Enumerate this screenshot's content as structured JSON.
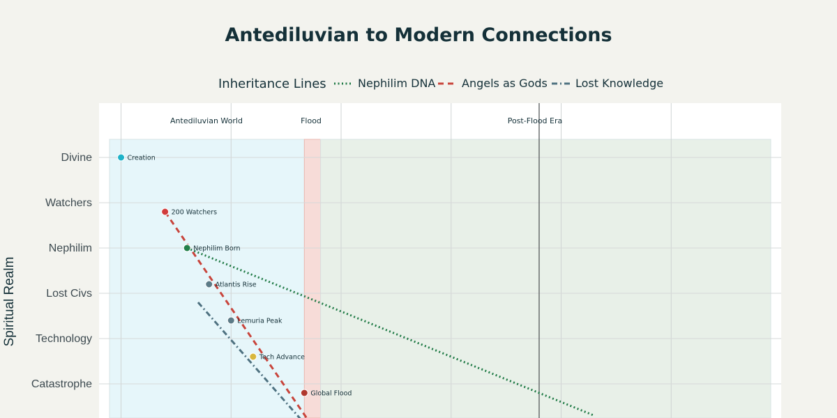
{
  "chart_data": {
    "type": "scatter",
    "title": "Antediluvian to Modern Connections",
    "ylabel": "Spiritual Realm",
    "xlabel": "",
    "grid": true,
    "categories": [
      "Divine",
      "Watchers",
      "Nephilim",
      "Lost Civs",
      "Technology",
      "Catastrophe"
    ],
    "x_range": [
      0,
      31
    ],
    "y_range_cat": [
      -0.9,
      6.7
    ],
    "legend": {
      "title": "Inheritance Lines",
      "placement": "top",
      "entries": [
        {
          "name": "Nephilim DNA",
          "color": "#1f7a45",
          "dash": "dot"
        },
        {
          "name": "Angels as Gods",
          "color": "#c8443b",
          "dash": "dash"
        },
        {
          "name": "Lost Knowledge",
          "color": "#4e7180",
          "dash": "dashdot"
        }
      ]
    },
    "eras": [
      {
        "name": "Antediluvian World",
        "x0": 0,
        "x1": 9.33,
        "color": "#e6f6fa"
      },
      {
        "name": "Flood",
        "x0": 9.33,
        "x1": 10.07,
        "color": "#f7dcd8"
      },
      {
        "name": "Post-Flood Era",
        "x0": 10.07,
        "x1": 31,
        "color": "#e8f0e8"
      }
    ],
    "points": [
      {
        "label": "Creation",
        "x": 1,
        "y": 0,
        "color": "#1fb3c9"
      },
      {
        "label": "200 Watchers",
        "x": 3,
        "y": 1.2,
        "color": "#d13c3c"
      },
      {
        "label": "Nephilim Born",
        "x": 4,
        "y": 2,
        "color": "#23804a"
      },
      {
        "label": "Atlantis Rise",
        "x": 5,
        "y": 2.8,
        "color": "#5c7b87"
      },
      {
        "label": "Lemuria Peak",
        "x": 6,
        "y": 3.6,
        "color": "#5c7b87"
      },
      {
        "label": "Tech Advance",
        "x": 7,
        "y": 4.4,
        "color": "#d8b73c"
      },
      {
        "label": "Global Flood",
        "x": 9.33,
        "y": 5.2,
        "color": "#b0382e"
      }
    ],
    "series": [
      {
        "name": "Nephilim DNA",
        "x": [
          4,
          22.5
        ],
        "y": [
          2,
          5.7
        ]
      },
      {
        "name": "Angels as Gods",
        "x": [
          3,
          9.5
        ],
        "y": [
          1.2,
          5.8
        ]
      },
      {
        "name": "Lost Knowledge",
        "x": [
          4.5,
          9.2
        ],
        "y": [
          3.2,
          5.8
        ]
      }
    ],
    "vertical_lines": [
      20
    ]
  }
}
